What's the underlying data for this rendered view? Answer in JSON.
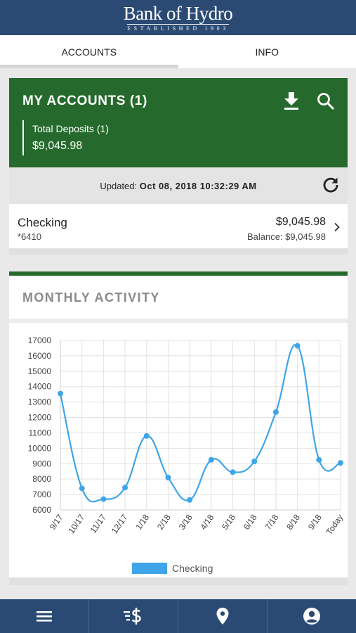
{
  "header": {
    "logo_main": "Bank of Hydro",
    "logo_sub": "ESTABLISHED 1903"
  },
  "tabs": [
    {
      "label": "ACCOUNTS",
      "active": true
    },
    {
      "label": "INFO",
      "active": false
    }
  ],
  "accounts_card": {
    "title": "MY ACCOUNTS (1)",
    "deposits_label": "Total Deposits (1)",
    "deposits_value": "$9,045.98",
    "color": "#256a2c",
    "icons": [
      "download-icon",
      "search-icon"
    ]
  },
  "updated": {
    "label": "Updated:",
    "value": "Oct 08, 2018 10:32:29 AM",
    "icon": "refresh-icon"
  },
  "checking": {
    "name": "Checking",
    "number": "*6410",
    "amount": "$9,045.98",
    "balance": "Balance: $9,045.98"
  },
  "activity": {
    "title": "MONTHLY ACTIVITY"
  },
  "chart_data": {
    "type": "line",
    "categories": [
      "9/17",
      "10/17",
      "11/17",
      "12/17",
      "1/18",
      "2/18",
      "3/18",
      "4/18",
      "5/18",
      "6/18",
      "7/18",
      "8/18",
      "9/18",
      "Today"
    ],
    "series": [
      {
        "name": "Checking",
        "values": [
          13550,
          7400,
          6700,
          7450,
          10800,
          8100,
          6650,
          9250,
          8450,
          9150,
          12350,
          16650,
          9250,
          9050
        ],
        "color": "#3fa5e8"
      }
    ],
    "ylim": [
      6000,
      17000
    ],
    "yticks": [
      6000,
      7000,
      8000,
      9000,
      10000,
      11000,
      12000,
      13000,
      14000,
      15000,
      16000,
      17000
    ],
    "grid": true,
    "legend": "bottom"
  },
  "bottom_nav": [
    {
      "icon": "menu-icon"
    },
    {
      "icon": "transfer-icon"
    },
    {
      "icon": "location-icon"
    },
    {
      "icon": "account-icon"
    }
  ]
}
